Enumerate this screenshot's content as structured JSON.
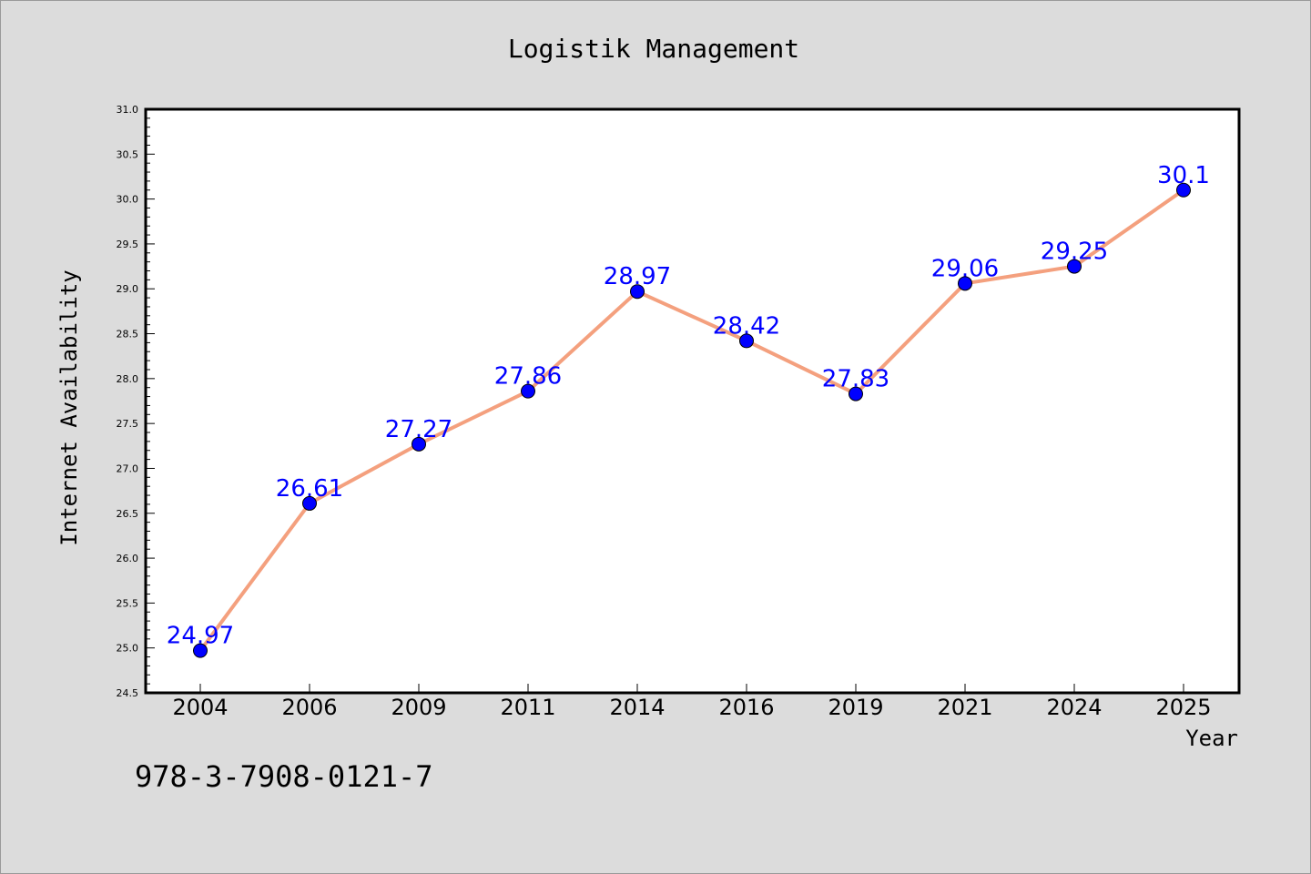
{
  "chart_data": {
    "type": "line",
    "title": "Logistik Management",
    "xlabel": "Year",
    "ylabel": "Internet Availability",
    "categories": [
      "2004",
      "2006",
      "2009",
      "2011",
      "2014",
      "2016",
      "2019",
      "2021",
      "2024",
      "2025"
    ],
    "series": [
      {
        "values": [
          24.97,
          26.61,
          27.27,
          27.86,
          28.97,
          28.42,
          27.83,
          29.06,
          29.25,
          30.1
        ],
        "labels": [
          "24.97",
          "26.61",
          "27.27",
          "27.86",
          "28.97",
          "28.42",
          "27.83",
          "29.06",
          "29.25",
          "30.1"
        ],
        "line_color": "#f4a07e",
        "marker_color": "#0000ff"
      }
    ],
    "ylim": [
      24.5,
      31.0
    ],
    "yticks": [
      "24.5",
      "25.0",
      "25.5",
      "26.0",
      "26.5",
      "27.0",
      "27.5",
      "28.0",
      "28.5",
      "29.0",
      "29.5",
      "30.0",
      "30.5",
      "31.0"
    ],
    "grid": false,
    "legend": "none"
  },
  "footer_text": "978-3-7908-0121-7"
}
